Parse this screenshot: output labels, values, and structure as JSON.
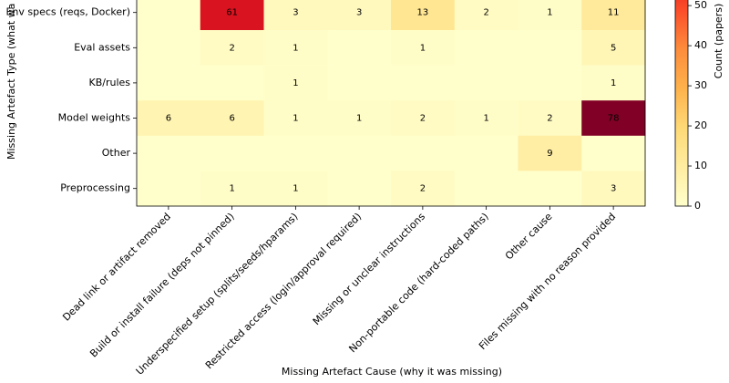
{
  "chart_data": {
    "type": "heatmap",
    "xlabel": "Missing Artefact Cause (why it was missing)",
    "ylabel": "Missing Artefact Type (what wa",
    "colorbar_label": "Count (papers)",
    "colormap": "YlOrRd",
    "x_categories": [
      "Dead link or artifact removed",
      "Build or install failure (deps not pinned)",
      "Underspecified setup (splits/seeds/hparams)",
      "Restricted access (login/approval required)",
      "Missing or unclear instructions",
      "Non-portable code (hard-coded paths)",
      "Other cause",
      "Files missing with no reason provided"
    ],
    "y_categories": [
      "Env specs (reqs, Docker)",
      "Eval assets",
      "KB/rules",
      "Model weights",
      "Other",
      "Preprocessing"
    ],
    "values": [
      [
        0,
        61,
        3,
        3,
        13,
        2,
        1,
        11
      ],
      [
        0,
        2,
        1,
        0,
        1,
        0,
        0,
        5
      ],
      [
        0,
        0,
        1,
        0,
        0,
        0,
        0,
        1
      ],
      [
        6,
        6,
        1,
        1,
        2,
        1,
        2,
        78
      ],
      [
        0,
        0,
        0,
        0,
        0,
        0,
        9,
        0
      ],
      [
        0,
        1,
        1,
        0,
        2,
        0,
        0,
        3
      ]
    ],
    "clim": [
      0,
      78
    ],
    "cticks": [
      0,
      10,
      20,
      30,
      40,
      50
    ]
  }
}
